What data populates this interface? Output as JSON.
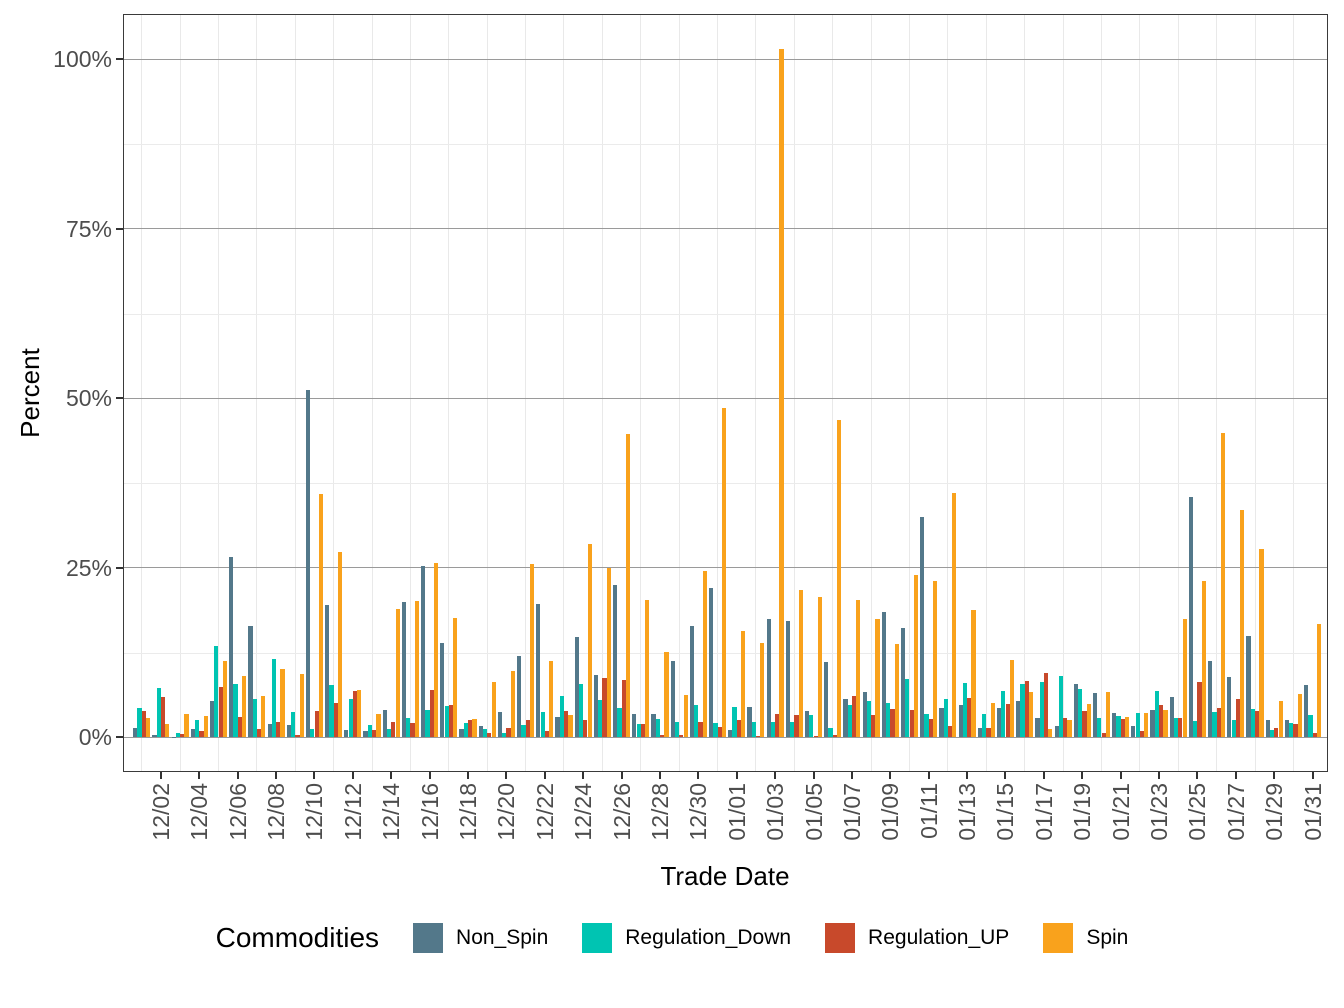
{
  "figure": {
    "y_axis": {
      "title": "Percent",
      "tick_labels": [
        "0%",
        "25%",
        "50%",
        "75%",
        "100%"
      ],
      "tick_values": [
        0,
        25,
        50,
        75,
        100
      ],
      "minor_values": [
        12.5,
        37.5,
        62.5,
        87.5
      ]
    },
    "x_axis": {
      "title": "Trade Date",
      "tick_labels": [
        "12/02",
        "12/04",
        "12/06",
        "12/08",
        "12/10",
        "12/12",
        "12/14",
        "12/16",
        "12/18",
        "12/20",
        "12/22",
        "12/24",
        "12/26",
        "12/28",
        "12/30",
        "01/01",
        "01/03",
        "01/05",
        "01/07",
        "01/09",
        "01/11",
        "01/13",
        "01/15",
        "01/17",
        "01/19",
        "01/21",
        "01/23",
        "01/25",
        "01/27",
        "01/29",
        "01/31"
      ]
    },
    "legend": {
      "title": "Commodities",
      "items": [
        {
          "label": "Non_Spin",
          "color": "#53788A"
        },
        {
          "label": "Regulation_Down",
          "color": "#00C4B2"
        },
        {
          "label": "Regulation_UP",
          "color": "#C8492B"
        },
        {
          "label": "Spin",
          "color": "#F9A21C"
        }
      ]
    },
    "chart_data": {
      "type": "bar",
      "grouping": "dodge",
      "ylim": [
        0,
        106.6
      ],
      "grid": true,
      "legend_position": "bottom",
      "categories": [
        "12/01",
        "12/02",
        "12/03",
        "12/04",
        "12/05",
        "12/06",
        "12/07",
        "12/08",
        "12/09",
        "12/10",
        "12/11",
        "12/12",
        "12/13",
        "12/14",
        "12/15",
        "12/16",
        "12/17",
        "12/18",
        "12/19",
        "12/20",
        "12/21",
        "12/22",
        "12/23",
        "12/24",
        "12/25",
        "12/26",
        "12/27",
        "12/28",
        "12/29",
        "12/30",
        "12/31",
        "01/01",
        "01/02",
        "01/03",
        "01/04",
        "01/05",
        "01/06",
        "01/07",
        "01/08",
        "01/09",
        "01/10",
        "01/11",
        "01/12",
        "01/13",
        "01/14",
        "01/15",
        "01/16",
        "01/17",
        "01/18",
        "01/19",
        "01/20",
        "01/21",
        "01/22",
        "01/23",
        "01/24",
        "01/25",
        "01/26",
        "01/27",
        "01/28",
        "01/29",
        "01/30",
        "01/31"
      ],
      "series": [
        {
          "name": "Non_Spin",
          "color": "#53788A",
          "values": [
            1.4,
            0.3,
            0.1,
            1.2,
            5.4,
            26.6,
            16.4,
            2.0,
            1.8,
            51.2,
            19.5,
            1.1,
            1.0,
            4.0,
            20.0,
            25.2,
            13.9,
            1.2,
            1.7,
            3.8,
            12.0,
            19.7,
            3.0,
            14.8,
            9.2,
            22.5,
            3.5,
            3.4,
            11.2,
            16.4,
            22.1,
            1.1,
            4.5,
            17.5,
            17.2,
            3.9,
            11.1,
            5.7,
            6.7,
            18.5,
            16.1,
            32.5,
            4.3,
            4.8,
            1.4,
            4.4,
            5.3,
            2.8,
            1.7,
            7.9,
            6.6,
            3.6,
            1.7,
            4.0,
            6.0,
            35.5,
            11.2,
            8.9,
            15.0,
            2.5,
            2.5,
            7.7
          ]
        },
        {
          "name": "Regulation_Down",
          "color": "#00C4B2",
          "values": [
            4.3,
            7.3,
            0.7,
            2.5,
            13.4,
            7.8,
            5.7,
            11.5,
            3.7,
            1.3,
            7.7,
            5.7,
            1.8,
            1.2,
            2.8,
            4.0,
            4.6,
            2.1,
            1.2,
            0.6,
            1.8,
            3.7,
            6.1,
            7.9,
            5.5,
            4.4,
            2.0,
            2.7,
            2.2,
            4.7,
            2.1,
            4.5,
            2.3,
            2.3,
            2.3,
            3.3,
            1.4,
            4.8,
            5.3,
            5.1,
            8.6,
            3.5,
            5.6,
            8.0,
            3.4,
            6.9,
            7.8,
            8.2,
            9.1,
            7.2,
            2.8,
            3.1,
            3.6,
            6.8,
            2.9,
            2.4,
            3.8,
            2.5,
            4.2,
            1.1,
            2.1,
            3.3
          ]
        },
        {
          "name": "Regulation_UP",
          "color": "#C8492B",
          "values": [
            3.9,
            5.9,
            0.5,
            0.9,
            7.4,
            3.0,
            1.2,
            2.2,
            0.4,
            3.9,
            5.0,
            6.9,
            1.1,
            2.2,
            2.1,
            7.0,
            4.8,
            2.5,
            0.7,
            1.4,
            2.5,
            1.0,
            3.9,
            2.5,
            8.8,
            8.4,
            2.0,
            0.3,
            0.4,
            2.2,
            1.6,
            2.5,
            0.2,
            3.4,
            3.3,
            0.2,
            0.4,
            6.1,
            3.3,
            4.2,
            4.0,
            2.7,
            1.7,
            5.8,
            1.4,
            4.9,
            8.3,
            9.5,
            2.8,
            3.9,
            0.7,
            2.7,
            1.0,
            4.7,
            2.8,
            8.1,
            4.3,
            5.7,
            3.9,
            1.4,
            2.0,
            0.6
          ]
        },
        {
          "name": "Spin",
          "color": "#F9A21C",
          "values": [
            2.9,
            1.9,
            3.4,
            3.1,
            11.3,
            9.0,
            6.1,
            10.1,
            9.3,
            35.9,
            27.3,
            7.0,
            3.5,
            18.9,
            20.1,
            25.7,
            17.6,
            2.7,
            8.2,
            9.8,
            25.5,
            11.3,
            3.3,
            28.5,
            25.0,
            44.8,
            20.3,
            12.6,
            6.2,
            24.5,
            48.6,
            15.7,
            13.9,
            101.5,
            21.8,
            20.7,
            46.8,
            20.3,
            17.4,
            13.7,
            24.0,
            23.0,
            36.1,
            18.8,
            5.0,
            11.4,
            6.7,
            1.2,
            2.5,
            4.9,
            6.7,
            3.0,
            3.6,
            4.0,
            17.4,
            23.1,
            44.9,
            33.6,
            27.8,
            5.3,
            6.4,
            16.7
          ]
        }
      ]
    }
  }
}
